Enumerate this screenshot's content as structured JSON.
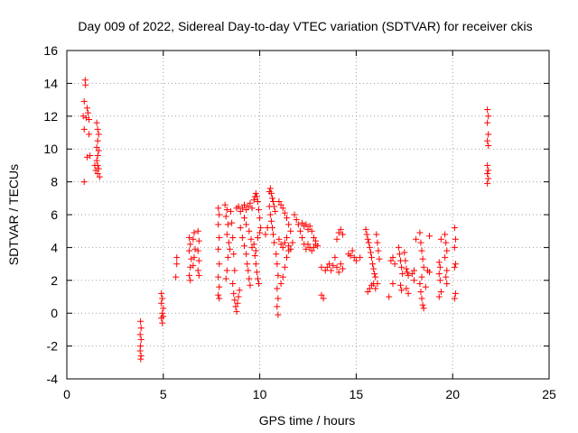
{
  "chart_data": {
    "type": "scatter",
    "title": "Day 009 of 2022, Sidereal Day-to-day VTEC variation (SDTVAR) for receiver ckis",
    "xlabel": "GPS time / hours",
    "ylabel": "SDTVAR / TECUs",
    "xlim": [
      0,
      25
    ],
    "ylim": [
      -4,
      16
    ],
    "xticks": [
      0,
      5,
      10,
      15,
      20,
      25
    ],
    "yticks": [
      -4,
      -2,
      0,
      2,
      4,
      6,
      8,
      10,
      12,
      14,
      16
    ],
    "grid": true,
    "marker": "+",
    "color": "#ff0000",
    "series": [
      {
        "name": "SDTVAR",
        "points": [
          [
            0.95,
            14.2
          ],
          [
            0.97,
            13.9
          ],
          [
            0.9,
            12.9
          ],
          [
            1.05,
            12.5
          ],
          [
            1.1,
            12.2
          ],
          [
            0.85,
            12.0
          ],
          [
            1.0,
            11.9
          ],
          [
            1.15,
            11.8
          ],
          [
            0.9,
            11.2
          ],
          [
            0.9,
            8.0
          ],
          [
            1.15,
            10.9
          ],
          [
            1.2,
            9.6
          ],
          [
            1.05,
            9.5
          ],
          [
            1.55,
            11.6
          ],
          [
            1.6,
            11.2
          ],
          [
            1.65,
            10.9
          ],
          [
            1.6,
            10.5
          ],
          [
            1.55,
            10.1
          ],
          [
            1.65,
            9.9
          ],
          [
            1.6,
            9.6
          ],
          [
            1.55,
            9.3
          ],
          [
            1.6,
            9.0
          ],
          [
            1.65,
            8.8
          ],
          [
            1.6,
            8.5
          ],
          [
            1.7,
            8.3
          ],
          [
            1.45,
            9.0
          ],
          [
            1.5,
            8.7
          ],
          [
            3.82,
            -0.5
          ],
          [
            3.85,
            -0.9
          ],
          [
            3.8,
            -1.3
          ],
          [
            3.85,
            -1.6
          ],
          [
            3.82,
            -2.0
          ],
          [
            3.8,
            -2.3
          ],
          [
            3.85,
            -2.6
          ],
          [
            3.83,
            -2.8
          ],
          [
            4.9,
            1.2
          ],
          [
            4.95,
            0.9
          ],
          [
            4.9,
            0.6
          ],
          [
            5.0,
            0.3
          ],
          [
            4.95,
            0.0
          ],
          [
            4.9,
            -0.3
          ],
          [
            4.95,
            -0.6
          ],
          [
            5.0,
            -0.2
          ],
          [
            5.7,
            3.4
          ],
          [
            5.7,
            3.0
          ],
          [
            5.65,
            2.2
          ],
          [
            6.35,
            4.6
          ],
          [
            6.4,
            4.2
          ],
          [
            6.35,
            3.8
          ],
          [
            6.45,
            3.3
          ],
          [
            6.4,
            2.8
          ],
          [
            6.35,
            2.3
          ],
          [
            6.4,
            2.0
          ],
          [
            6.6,
            4.9
          ],
          [
            6.55,
            4.5
          ],
          [
            6.65,
            3.9
          ],
          [
            6.6,
            3.4
          ],
          [
            6.55,
            2.9
          ],
          [
            6.8,
            5.0
          ],
          [
            6.85,
            4.4
          ],
          [
            6.8,
            3.8
          ],
          [
            6.85,
            3.2
          ],
          [
            6.8,
            2.6
          ],
          [
            6.85,
            2.3
          ],
          [
            7.85,
            6.4
          ],
          [
            7.9,
            6.0
          ],
          [
            7.85,
            5.4
          ],
          [
            7.9,
            4.6
          ],
          [
            7.85,
            3.9
          ],
          [
            7.9,
            3.0
          ],
          [
            7.85,
            2.2
          ],
          [
            7.9,
            1.6
          ],
          [
            7.85,
            1.1
          ],
          [
            7.9,
            0.9
          ],
          [
            8.2,
            6.6
          ],
          [
            8.3,
            6.3
          ],
          [
            8.25,
            5.9
          ],
          [
            8.35,
            5.4
          ],
          [
            8.3,
            4.8
          ],
          [
            8.4,
            4.3
          ],
          [
            8.45,
            3.9
          ],
          [
            8.35,
            3.4
          ],
          [
            8.3,
            2.6
          ],
          [
            8.25,
            2.1
          ],
          [
            8.5,
            6.2
          ],
          [
            8.55,
            5.5
          ],
          [
            8.6,
            4.6
          ],
          [
            8.65,
            3.6
          ],
          [
            8.7,
            2.6
          ],
          [
            8.6,
            1.8
          ],
          [
            8.65,
            1.2
          ],
          [
            8.7,
            0.8
          ],
          [
            8.75,
            0.4
          ],
          [
            8.8,
            0.1
          ],
          [
            8.85,
            0.6
          ],
          [
            8.9,
            1.0
          ],
          [
            8.95,
            1.4
          ],
          [
            8.8,
            6.4
          ],
          [
            8.9,
            6.5
          ],
          [
            9.0,
            6.2
          ],
          [
            9.1,
            6.4
          ],
          [
            9.2,
            6.6
          ],
          [
            9.3,
            6.3
          ],
          [
            9.4,
            6.5
          ],
          [
            9.5,
            6.7
          ],
          [
            9.6,
            6.4
          ],
          [
            9.0,
            5.2
          ],
          [
            9.1,
            4.6
          ],
          [
            9.2,
            4.1
          ],
          [
            9.3,
            3.6
          ],
          [
            9.35,
            3.0
          ],
          [
            9.4,
            2.6
          ],
          [
            9.45,
            2.1
          ],
          [
            9.5,
            1.7
          ],
          [
            9.2,
            5.8
          ],
          [
            9.3,
            5.4
          ],
          [
            9.45,
            5.0
          ],
          [
            9.55,
            4.5
          ],
          [
            9.6,
            4.0
          ],
          [
            9.7,
            6.9
          ],
          [
            9.75,
            7.1
          ],
          [
            9.8,
            7.3
          ],
          [
            9.85,
            7.1
          ],
          [
            9.9,
            6.8
          ],
          [
            9.95,
            6.3
          ],
          [
            10.0,
            5.8
          ],
          [
            10.05,
            5.2
          ],
          [
            9.7,
            4.2
          ],
          [
            9.75,
            3.5
          ],
          [
            9.8,
            3.0
          ],
          [
            9.85,
            2.5
          ],
          [
            9.9,
            2.1
          ],
          [
            9.95,
            1.8
          ],
          [
            9.8,
            3.8
          ],
          [
            9.9,
            4.6
          ],
          [
            10.0,
            4.9
          ],
          [
            10.3,
            4.8
          ],
          [
            10.4,
            5.2
          ],
          [
            10.5,
            7.4
          ],
          [
            10.55,
            7.6
          ],
          [
            10.6,
            7.3
          ],
          [
            10.65,
            7.0
          ],
          [
            10.7,
            6.8
          ],
          [
            10.75,
            6.5
          ],
          [
            10.8,
            6.2
          ],
          [
            10.5,
            6.5
          ],
          [
            10.55,
            6.0
          ],
          [
            10.6,
            5.6
          ],
          [
            10.65,
            5.2
          ],
          [
            10.7,
            4.8
          ],
          [
            10.75,
            4.3
          ],
          [
            10.85,
            3.6
          ],
          [
            10.9,
            3.0
          ],
          [
            10.95,
            2.3
          ],
          [
            10.9,
            1.5
          ],
          [
            10.95,
            0.9
          ],
          [
            10.9,
            0.4
          ],
          [
            10.95,
            -0.1
          ],
          [
            11.0,
            6.8
          ],
          [
            11.1,
            6.6
          ],
          [
            11.2,
            6.4
          ],
          [
            11.3,
            6.1
          ],
          [
            11.4,
            5.8
          ],
          [
            11.5,
            5.4
          ],
          [
            11.6,
            5.0
          ],
          [
            11.0,
            4.5
          ],
          [
            11.1,
            4.2
          ],
          [
            11.2,
            4.0
          ],
          [
            11.3,
            4.3
          ],
          [
            11.4,
            4.6
          ],
          [
            11.5,
            4.1
          ],
          [
            11.6,
            3.9
          ],
          [
            11.7,
            4.3
          ],
          [
            11.1,
            1.8
          ],
          [
            11.2,
            2.2
          ],
          [
            11.3,
            2.8
          ],
          [
            11.4,
            3.4
          ],
          [
            11.5,
            3.8
          ],
          [
            11.8,
            6.0
          ],
          [
            11.9,
            5.7
          ],
          [
            12.0,
            5.4
          ],
          [
            12.1,
            5.0
          ],
          [
            12.2,
            4.6
          ],
          [
            12.3,
            4.2
          ],
          [
            12.4,
            3.9
          ],
          [
            12.2,
            5.5
          ],
          [
            12.3,
            5.3
          ],
          [
            12.4,
            5.4
          ],
          [
            12.5,
            5.1
          ],
          [
            12.6,
            5.3
          ],
          [
            12.7,
            5.0
          ],
          [
            12.8,
            4.6
          ],
          [
            12.9,
            4.2
          ],
          [
            12.5,
            4.2
          ],
          [
            12.6,
            4.0
          ],
          [
            12.7,
            3.8
          ],
          [
            12.8,
            4.0
          ],
          [
            12.9,
            4.4
          ],
          [
            13.0,
            4.1
          ],
          [
            13.2,
            1.1
          ],
          [
            13.3,
            0.9
          ],
          [
            13.2,
            2.8
          ],
          [
            13.4,
            2.6
          ],
          [
            13.5,
            2.8
          ],
          [
            13.6,
            3.0
          ],
          [
            13.7,
            2.6
          ],
          [
            13.8,
            2.9
          ],
          [
            13.9,
            3.4
          ],
          [
            14.0,
            2.8
          ],
          [
            14.1,
            2.5
          ],
          [
            14.2,
            3.0
          ],
          [
            14.3,
            2.7
          ],
          [
            14.0,
            4.5
          ],
          [
            14.1,
            4.9
          ],
          [
            14.2,
            5.1
          ],
          [
            14.3,
            4.8
          ],
          [
            14.6,
            3.6
          ],
          [
            14.7,
            3.5
          ],
          [
            14.8,
            3.8
          ],
          [
            14.9,
            3.4
          ],
          [
            15.0,
            3.2
          ],
          [
            15.2,
            3.4
          ],
          [
            15.5,
            5.1
          ],
          [
            15.55,
            4.8
          ],
          [
            15.6,
            4.5
          ],
          [
            15.65,
            4.3
          ],
          [
            15.7,
            4.0
          ],
          [
            15.75,
            3.7
          ],
          [
            15.8,
            3.4
          ],
          [
            15.85,
            3.0
          ],
          [
            15.9,
            2.7
          ],
          [
            15.95,
            2.4
          ],
          [
            16.0,
            2.2
          ],
          [
            16.05,
            4.8
          ],
          [
            16.1,
            4.3
          ],
          [
            16.15,
            3.8
          ],
          [
            16.2,
            3.3
          ],
          [
            15.6,
            1.3
          ],
          [
            15.7,
            1.5
          ],
          [
            15.8,
            1.7
          ],
          [
            15.9,
            1.8
          ],
          [
            16.0,
            1.5
          ],
          [
            16.1,
            1.8
          ],
          [
            16.8,
            3.2
          ],
          [
            16.9,
            3.4
          ],
          [
            17.0,
            3.0
          ],
          [
            16.7,
            1.0
          ],
          [
            16.9,
            1.8
          ],
          [
            17.2,
            4.0
          ],
          [
            17.25,
            3.6
          ],
          [
            17.3,
            3.2
          ],
          [
            17.35,
            2.8
          ],
          [
            17.4,
            2.4
          ],
          [
            17.3,
            1.7
          ],
          [
            17.35,
            1.4
          ],
          [
            17.5,
            3.7
          ],
          [
            17.55,
            3.2
          ],
          [
            17.6,
            2.7
          ],
          [
            17.65,
            2.5
          ],
          [
            17.7,
            2.3
          ],
          [
            17.6,
            1.5
          ],
          [
            17.7,
            1.2
          ],
          [
            17.9,
            2.4
          ],
          [
            18.0,
            2.6
          ],
          [
            18.1,
            4.5
          ],
          [
            18.0,
            2.0
          ],
          [
            18.3,
            4.9
          ],
          [
            18.35,
            4.3
          ],
          [
            18.4,
            3.8
          ],
          [
            18.45,
            3.3
          ],
          [
            18.5,
            2.8
          ],
          [
            18.4,
            2.2
          ],
          [
            18.3,
            1.8
          ],
          [
            18.35,
            1.3
          ],
          [
            18.4,
            0.9
          ],
          [
            18.45,
            0.5
          ],
          [
            18.5,
            0.3
          ],
          [
            18.6,
            1.6
          ],
          [
            18.8,
            4.7
          ],
          [
            18.7,
            2.6
          ],
          [
            18.8,
            2.5
          ],
          [
            19.3,
            3.1
          ],
          [
            19.35,
            2.8
          ],
          [
            19.3,
            2.4
          ],
          [
            19.35,
            2.0
          ],
          [
            19.4,
            1.3
          ],
          [
            19.3,
            1.0
          ],
          [
            19.4,
            4.5
          ],
          [
            19.6,
            4.8
          ],
          [
            19.65,
            4.3
          ],
          [
            19.7,
            3.8
          ],
          [
            19.6,
            3.4
          ],
          [
            19.7,
            2.6
          ],
          [
            19.65,
            2.2
          ],
          [
            19.7,
            1.8
          ],
          [
            20.1,
            5.2
          ],
          [
            20.15,
            4.5
          ],
          [
            20.1,
            4.0
          ],
          [
            20.15,
            3.0
          ],
          [
            20.1,
            2.8
          ],
          [
            20.15,
            1.2
          ],
          [
            20.1,
            0.9
          ],
          [
            21.8,
            12.4
          ],
          [
            21.85,
            12.0
          ],
          [
            21.8,
            11.6
          ],
          [
            21.85,
            10.9
          ],
          [
            21.8,
            10.5
          ],
          [
            21.85,
            10.2
          ],
          [
            21.8,
            9.0
          ],
          [
            21.85,
            8.7
          ],
          [
            21.8,
            8.5
          ],
          [
            21.85,
            8.2
          ],
          [
            21.8,
            7.9
          ]
        ]
      }
    ]
  }
}
